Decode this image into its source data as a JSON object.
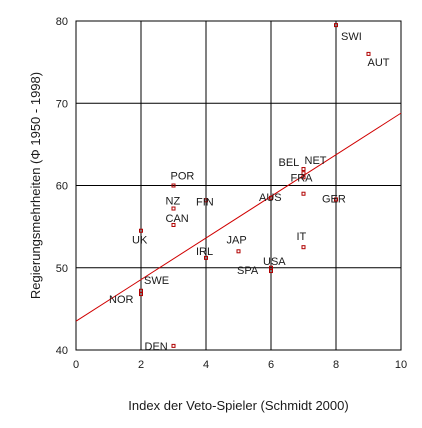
{
  "chart_data": {
    "type": "scatter",
    "title": "",
    "xlabel": "Index der Veto-Spieler (Schmidt 2000)",
    "ylabel": "Regierungsmehrheiten (Φ 1950 - 1998)",
    "xlim": [
      0,
      10
    ],
    "ylim": [
      40,
      80
    ],
    "xticks": [
      0,
      2,
      4,
      6,
      8,
      10
    ],
    "yticks": [
      40,
      50,
      60,
      70,
      80
    ],
    "grid": true,
    "colors": {
      "points": "#b00000",
      "fit_line": "#d00000",
      "grid": "#000000"
    },
    "points": [
      {
        "label": "SWI",
        "x": 8,
        "y": 79.5
      },
      {
        "label": "AUT",
        "x": 9,
        "y": 76
      },
      {
        "label": "BEL",
        "x": 7,
        "y": 61.5
      },
      {
        "label": "NET",
        "x": 7,
        "y": 62
      },
      {
        "label": "FRA",
        "x": 7,
        "y": 61
      },
      {
        "label": "POR",
        "x": 3,
        "y": 60
      },
      {
        "label": "FIN",
        "x": 4,
        "y": 58.2
      },
      {
        "label": "AUS",
        "x": 6,
        "y": 58.5
      },
      {
        "label": "GER",
        "x": 8,
        "y": 58.3
      },
      {
        "label": "",
        "x": 7,
        "y": 59
      },
      {
        "label": "NZ",
        "x": 3,
        "y": 57.2
      },
      {
        "label": "CAN",
        "x": 3,
        "y": 55.2
      },
      {
        "label": "UK",
        "x": 2,
        "y": 54.5
      },
      {
        "label": "IT",
        "x": 7,
        "y": 52.5
      },
      {
        "label": "JAP",
        "x": 5,
        "y": 52
      },
      {
        "label": "IRL",
        "x": 4,
        "y": 51.2
      },
      {
        "label": "USA",
        "x": 6,
        "y": 50
      },
      {
        "label": "SPA",
        "x": 6,
        "y": 49.6
      },
      {
        "label": "SWE",
        "x": 2,
        "y": 47.2
      },
      {
        "label": "NOR",
        "x": 2,
        "y": 46.8
      },
      {
        "label": "DEN",
        "x": 3,
        "y": 40.5
      }
    ],
    "fit_line": {
      "x": [
        0,
        10
      ],
      "y": [
        43.5,
        68.8
      ]
    }
  }
}
